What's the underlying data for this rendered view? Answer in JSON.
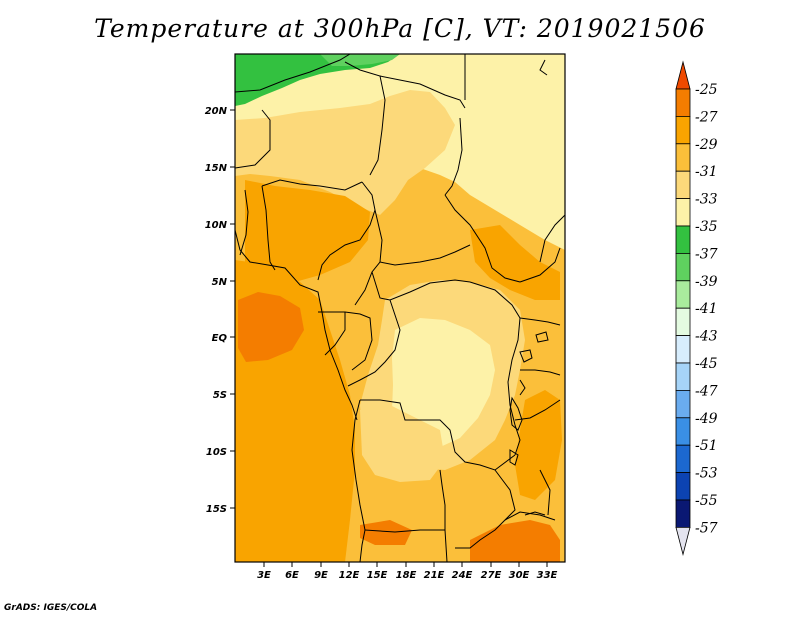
{
  "title": "Temperature at 300hPa [C], VT: 2019021506",
  "credit": "GrADS: IGES/COLA",
  "map": {
    "lat_labels": [
      "20N",
      "15N",
      "10N",
      "5N",
      "EQ",
      "5S",
      "10S",
      "15S"
    ],
    "lon_labels": [
      "3E",
      "6E",
      "9E",
      "12E",
      "15E",
      "18E",
      "21E",
      "24E",
      "27E",
      "30E",
      "33E"
    ]
  },
  "colorbar": {
    "levels": [
      "-25",
      "-27",
      "-29",
      "-31",
      "-33",
      "-35",
      "-37",
      "-39",
      "-41",
      "-43",
      "-45",
      "-47",
      "-49",
      "-51",
      "-53",
      "-55",
      "-57"
    ],
    "colors": [
      "#f04a00",
      "#f47d00",
      "#f9a400",
      "#fbbf3a",
      "#fcd97a",
      "#fdf2a8",
      "#33c140",
      "#5fd15f",
      "#a9ec9d",
      "#e4fbe1",
      "#d7edfd",
      "#a6d4f8",
      "#6aacef",
      "#3a8fe5",
      "#1c68d0",
      "#0c43b2",
      "#0a1873",
      "#e4e4ef"
    ]
  },
  "field_colors": {
    "c25_27": "#f47d00",
    "c27_29": "#f9a400",
    "c29_31": "#fbbf3a",
    "c31_33": "#fcd97a",
    "c33_35": "#fdf2a8",
    "c35_37": "#33c140"
  }
}
